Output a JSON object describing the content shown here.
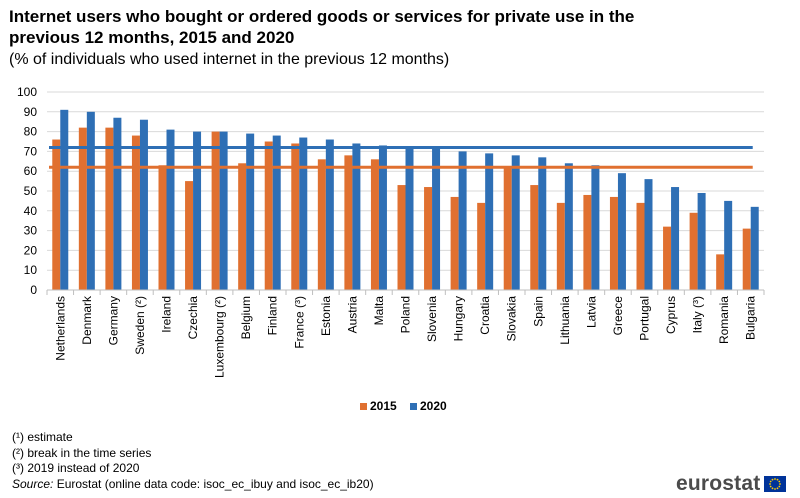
{
  "title": "Internet users who bought or ordered goods or services for private use in the previous 12 months, 2015 and 2020",
  "subtitle": "(% of individuals who used internet in the previous 12 months)",
  "chart_data": {
    "type": "bar",
    "categories": [
      "Netherlands",
      "Denmark",
      "Germany",
      "Sweden (²)",
      "Ireland",
      "Czechia",
      "Luxembourg (²)",
      "Belgium",
      "Finland",
      "France (³)",
      "Estonia",
      "Austria",
      "Malta",
      "Poland",
      "Slovenia",
      "Hungary",
      "Croatia",
      "Slovakia",
      "Spain",
      "Lithuania",
      "Latvia",
      "Greece",
      "Portugal",
      "Cyprus",
      "Italy (³)",
      "Romania",
      "Bulgaria"
    ],
    "series": [
      {
        "name": "2015",
        "color": "#e07030",
        "values": [
          76,
          82,
          82,
          78,
          63,
          55,
          80,
          64,
          75,
          74,
          66,
          68,
          66,
          53,
          52,
          47,
          44,
          62,
          53,
          44,
          48,
          47,
          44,
          32,
          39,
          18,
          31
        ],
        "average": 62
      },
      {
        "name": "2020",
        "color": "#2e6fb5",
        "values": [
          91,
          90,
          87,
          86,
          81,
          80,
          80,
          79,
          78,
          77,
          76,
          74,
          73,
          72,
          72,
          70,
          69,
          68,
          67,
          64,
          63,
          59,
          56,
          52,
          49,
          45,
          42
        ],
        "average": 72
      }
    ],
    "ylim": [
      0,
      100
    ],
    "yticks": [
      0,
      10,
      20,
      30,
      40,
      50,
      60,
      70,
      80,
      90,
      100
    ],
    "grid": true,
    "legend": "bottom-center",
    "ylabel": "",
    "xlabel": ""
  },
  "notes": [
    "(¹) estimate",
    "(²) break in the time series",
    "(³) 2019 instead of 2020"
  ],
  "source": {
    "label": "Source:",
    "text": "Eurostat (online data code: isoc_ec_ibuy and isoc_ec_ib20)"
  },
  "logo": {
    "text": "eurostat",
    "flag_color": "#003399",
    "star_color": "#ffcc00"
  }
}
